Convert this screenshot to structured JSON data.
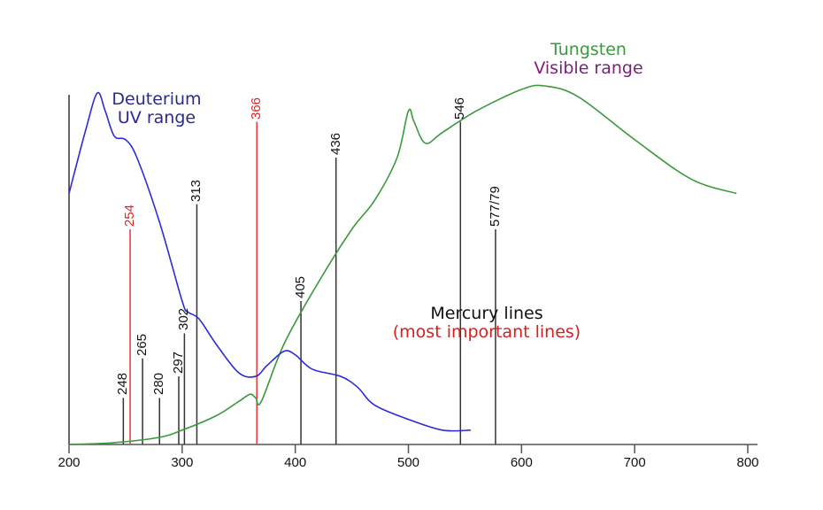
{
  "chart_data": {
    "type": "line",
    "title": "",
    "xlabel": "",
    "ylabel": "",
    "xlim": [
      200,
      800
    ],
    "x_ticks": [
      200,
      300,
      400,
      500,
      600,
      700,
      800
    ],
    "grid": false,
    "colors": {
      "deuterium": "#2b2bd9",
      "tungsten": "#3a9a3a",
      "mercury_line": "#333333",
      "mercury_important": "#e8393a",
      "deuterium_label": "#2a2a8c",
      "tungsten_label": "#3a9a3a",
      "visible_label": "#7a1f7a",
      "mercury_label": "#111111",
      "important_label": "#d42020"
    },
    "series": [
      {
        "name": "Deuterium",
        "label_line1": "Deuterium",
        "label_line2": "UV range",
        "x": [
          200,
          215,
          225,
          232,
          240,
          250,
          260,
          280,
          300,
          305,
          315,
          330,
          350,
          365,
          375,
          390,
          400,
          415,
          440,
          455,
          470,
          500,
          530,
          555
        ],
        "y": [
          0.7,
          0.88,
          0.98,
          0.93,
          0.86,
          0.85,
          0.8,
          0.62,
          0.4,
          0.37,
          0.35,
          0.28,
          0.2,
          0.19,
          0.22,
          0.26,
          0.25,
          0.21,
          0.19,
          0.16,
          0.11,
          0.07,
          0.04,
          0.04
        ]
      },
      {
        "name": "Tungsten",
        "label_line1": "Tungsten",
        "label_line2": "Visible range",
        "x": [
          200,
          240,
          280,
          300,
          330,
          350,
          360,
          365,
          370,
          390,
          420,
          450,
          470,
          490,
          500,
          505,
          515,
          530,
          560,
          600,
          620,
          650,
          700,
          750,
          790
        ],
        "y": [
          0.0,
          0.005,
          0.02,
          0.04,
          0.08,
          0.12,
          0.14,
          0.13,
          0.12,
          0.28,
          0.45,
          0.6,
          0.68,
          0.8,
          0.93,
          0.9,
          0.84,
          0.87,
          0.93,
          0.99,
          1.0,
          0.97,
          0.85,
          0.74,
          0.7
        ]
      }
    ],
    "mercury_lines": {
      "label": "Mercury lines",
      "sublabel": "(most important lines)",
      "lines": [
        {
          "wavelength": 248,
          "label": "248",
          "important": false,
          "height": 0.13
        },
        {
          "wavelength": 254,
          "label": "254",
          "important": true,
          "height": 0.6
        },
        {
          "wavelength": 265,
          "label": "265",
          "important": false,
          "height": 0.24
        },
        {
          "wavelength": 280,
          "label": "280",
          "important": false,
          "height": 0.13
        },
        {
          "wavelength": 297,
          "label": "297",
          "important": false,
          "height": 0.19
        },
        {
          "wavelength": 302,
          "label": "302",
          "important": false,
          "height": 0.31
        },
        {
          "wavelength": 313,
          "label": "313",
          "important": false,
          "height": 0.67
        },
        {
          "wavelength": 366,
          "label": "366",
          "important": true,
          "height": 0.9
        },
        {
          "wavelength": 405,
          "label": "405",
          "important": false,
          "height": 0.4
        },
        {
          "wavelength": 436,
          "label": "436",
          "important": false,
          "height": 0.8
        },
        {
          "wavelength": 546,
          "label": "546",
          "important": false,
          "height": 0.9
        },
        {
          "wavelength": 577,
          "label": "577/79",
          "important": false,
          "height": 0.6
        }
      ]
    }
  },
  "labels": {
    "deuterium_1": "Deuterium",
    "deuterium_2": "UV range",
    "tungsten_1": "Tungsten",
    "tungsten_2": "Visible range",
    "mercury_1": "Mercury lines",
    "mercury_2": "(most important lines)"
  }
}
